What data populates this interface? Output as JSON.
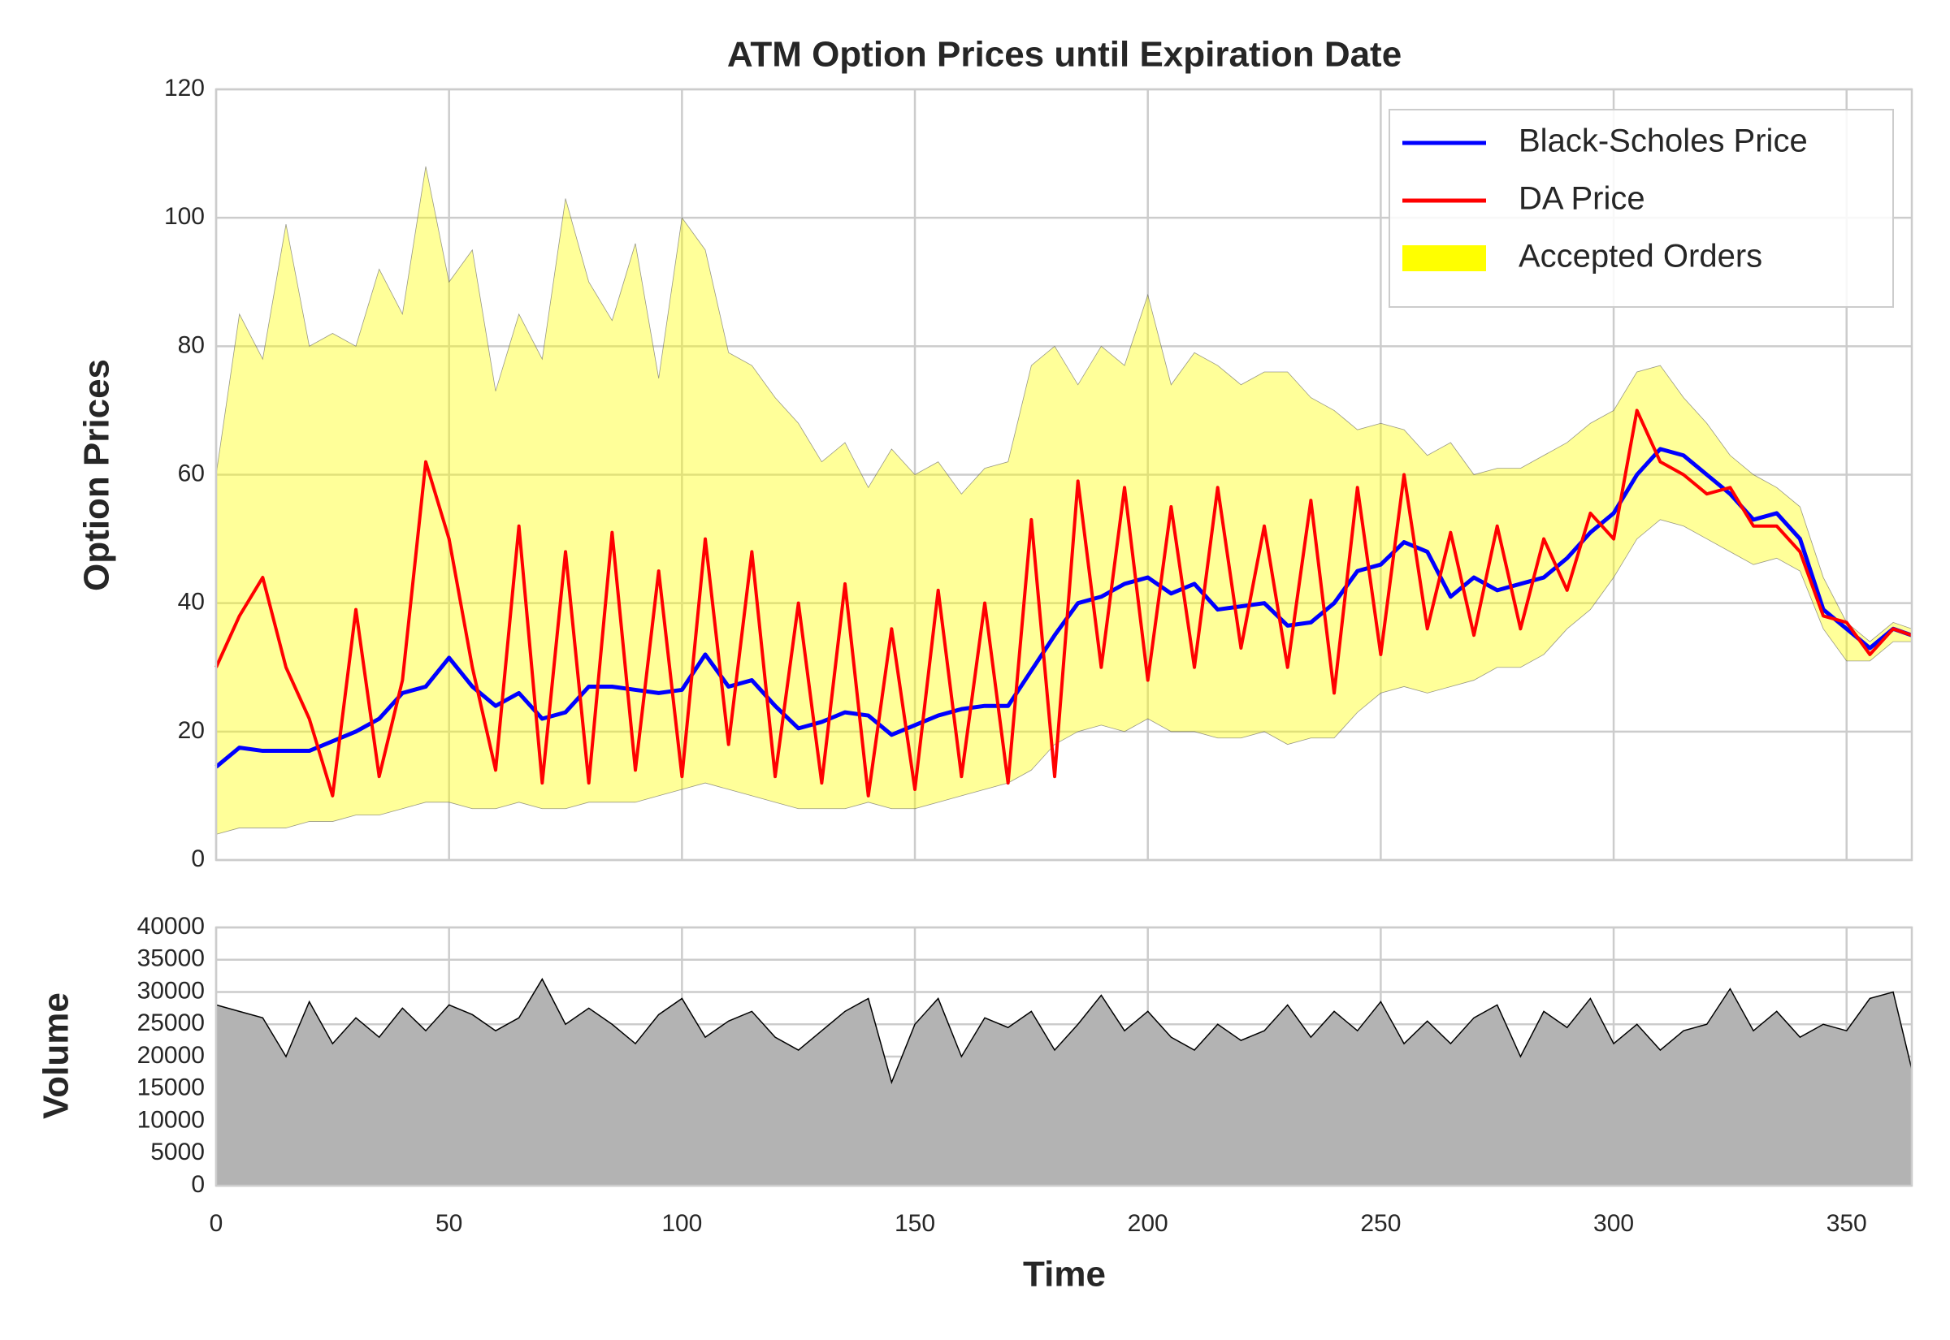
{
  "chart_data": [
    {
      "type": "line",
      "title": "ATM Option Prices until Expiration Date",
      "ylabel": "Option Prices",
      "x": [
        0,
        5,
        10,
        15,
        20,
        25,
        30,
        35,
        40,
        45,
        50,
        55,
        60,
        65,
        70,
        75,
        80,
        85,
        90,
        95,
        100,
        105,
        110,
        115,
        120,
        125,
        130,
        135,
        140,
        145,
        150,
        155,
        160,
        165,
        170,
        175,
        180,
        185,
        190,
        195,
        200,
        205,
        210,
        215,
        220,
        225,
        230,
        235,
        240,
        245,
        250,
        255,
        260,
        265,
        270,
        275,
        280,
        285,
        290,
        295,
        300,
        305,
        310,
        315,
        320,
        325,
        330,
        335,
        340,
        345,
        350,
        355,
        360,
        364
      ],
      "series": [
        {
          "name": "Black-Scholes Price",
          "color": "#0000ff",
          "values": [
            14.5,
            17.5,
            17,
            17,
            17,
            18.5,
            20,
            22,
            26,
            27,
            31.5,
            27,
            24,
            26,
            22,
            23,
            27,
            27,
            26.5,
            26,
            26.5,
            32,
            27,
            28,
            24,
            20.5,
            21.5,
            23,
            22.5,
            19.5,
            21,
            22.5,
            23.5,
            24,
            24,
            29.5,
            35,
            40,
            41,
            43,
            44,
            41.5,
            43,
            39,
            39.5,
            40,
            36.5,
            37,
            40,
            45,
            46,
            49.5,
            48,
            41,
            44,
            42,
            43,
            44,
            47,
            51,
            54,
            60,
            64,
            63,
            60,
            57,
            53,
            54,
            50,
            39,
            36,
            33,
            36,
            35
          ]
        },
        {
          "name": "DA Price",
          "color": "#ff0000",
          "values": [
            30,
            38,
            44,
            30,
            22,
            10,
            39,
            13,
            28,
            62,
            50,
            30,
            14,
            52,
            12,
            48,
            12,
            51,
            14,
            45,
            13,
            50,
            18,
            48,
            13,
            40,
            12,
            43,
            10,
            36,
            11,
            42,
            13,
            40,
            12,
            53,
            13,
            59,
            30,
            58,
            28,
            55,
            30,
            58,
            33,
            52,
            30,
            56,
            26,
            58,
            32,
            60,
            36,
            51,
            35,
            52,
            36,
            50,
            42,
            54,
            50,
            70,
            62,
            60,
            57,
            58,
            52,
            52,
            48,
            38,
            37,
            32,
            36,
            35
          ]
        },
        {
          "name": "Accepted Orders",
          "type": "band",
          "color": "#ffff00",
          "upper": [
            60,
            85,
            78,
            99,
            80,
            82,
            80,
            92,
            85,
            108,
            90,
            95,
            73,
            85,
            78,
            103,
            90,
            84,
            96,
            75,
            100,
            95,
            79,
            77,
            72,
            68,
            62,
            65,
            58,
            64,
            60,
            62,
            57,
            61,
            62,
            77,
            80,
            74,
            80,
            77,
            88,
            74,
            79,
            77,
            74,
            76,
            76,
            72,
            70,
            67,
            68,
            67,
            63,
            65,
            60,
            61,
            61,
            63,
            65,
            68,
            70,
            76,
            77,
            72,
            68,
            63,
            60,
            58,
            55,
            44,
            37,
            34,
            37,
            36
          ],
          "lower": [
            4,
            5,
            5,
            5,
            6,
            6,
            7,
            7,
            8,
            9,
            9,
            8,
            8,
            9,
            8,
            8,
            9,
            9,
            9,
            10,
            11,
            12,
            11,
            10,
            9,
            8,
            8,
            8,
            9,
            8,
            8,
            9,
            10,
            11,
            12,
            14,
            18,
            20,
            21,
            20,
            22,
            20,
            20,
            19,
            19,
            20,
            18,
            19,
            19,
            23,
            26,
            27,
            26,
            27,
            28,
            30,
            30,
            32,
            36,
            39,
            44,
            50,
            53,
            52,
            50,
            48,
            46,
            47,
            45,
            36,
            31,
            31,
            34,
            34
          ]
        }
      ],
      "xlim": [
        0,
        364
      ],
      "ylim": [
        0,
        120
      ],
      "yticks": [
        0,
        20,
        40,
        60,
        80,
        100,
        120
      ],
      "grid": true,
      "legend": "upper right"
    },
    {
      "type": "area",
      "ylabel": "Volume",
      "xlabel": "Time",
      "color": "#b3b3b3",
      "values": [
        28000,
        27000,
        26000,
        20000,
        28500,
        22000,
        26000,
        23000,
        27500,
        24000,
        28000,
        26500,
        24000,
        26000,
        32000,
        25000,
        27500,
        25000,
        22000,
        26500,
        29000,
        23000,
        25500,
        27000,
        23000,
        21000,
        24000,
        27000,
        29000,
        16000,
        25000,
        29000,
        20000,
        26000,
        24500,
        27000,
        21000,
        25000,
        29500,
        24000,
        27000,
        23000,
        21000,
        25000,
        22500,
        24000,
        28000,
        23000,
        27000,
        24000,
        28500,
        22000,
        25500,
        22000,
        26000,
        28000,
        20000,
        27000,
        24500,
        29000,
        22000,
        25000,
        21000,
        24000,
        25000,
        30500,
        24000,
        27000,
        23000,
        25000,
        24000,
        29000,
        30000,
        18000
      ],
      "xlim": [
        0,
        364
      ],
      "xticks": [
        0,
        50,
        100,
        150,
        200,
        250,
        300,
        350
      ],
      "ylim": [
        0,
        40000
      ],
      "yticks": [
        0,
        5000,
        10000,
        15000,
        20000,
        25000,
        30000,
        35000,
        40000
      ],
      "grid": true
    }
  ]
}
